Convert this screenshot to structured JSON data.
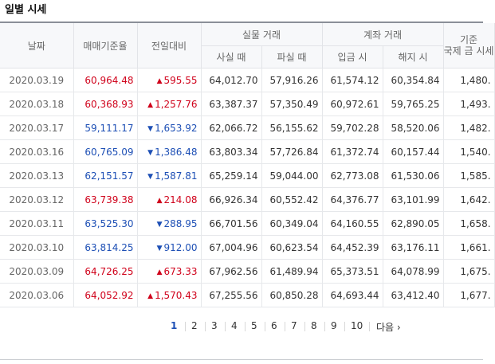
{
  "title": "일별 시세",
  "headers": {
    "date": "날짜",
    "base_rate": "매매기준율",
    "change": "전일대비",
    "actual_trade": "실물 거래",
    "buy": "사실 때",
    "sell": "파실 때",
    "account_trade": "계좌 거래",
    "deposit": "입금 시",
    "withdraw": "해지 시",
    "reference_line1": "기준",
    "reference_line2": "국제 금 시세"
  },
  "rows": [
    {
      "date": "2020.03.19",
      "base": "60,964.48",
      "dir": "up",
      "change": "595.55",
      "buy": "64,012.70",
      "sell": "57,916.26",
      "deposit": "61,574.12",
      "withdraw": "60,354.84",
      "ref": "1,480."
    },
    {
      "date": "2020.03.18",
      "base": "60,368.93",
      "dir": "up",
      "change": "1,257.76",
      "buy": "63,387.37",
      "sell": "57,350.49",
      "deposit": "60,972.61",
      "withdraw": "59,765.25",
      "ref": "1,493."
    },
    {
      "date": "2020.03.17",
      "base": "59,111.17",
      "dir": "down",
      "change": "1,653.92",
      "buy": "62,066.72",
      "sell": "56,155.62",
      "deposit": "59,702.28",
      "withdraw": "58,520.06",
      "ref": "1,482."
    },
    {
      "date": "2020.03.16",
      "base": "60,765.09",
      "dir": "down",
      "change": "1,386.48",
      "buy": "63,803.34",
      "sell": "57,726.84",
      "deposit": "61,372.74",
      "withdraw": "60,157.44",
      "ref": "1,540."
    },
    {
      "date": "2020.03.13",
      "base": "62,151.57",
      "dir": "down",
      "change": "1,587.81",
      "buy": "65,259.14",
      "sell": "59,044.00",
      "deposit": "62,773.08",
      "withdraw": "61,530.06",
      "ref": "1,585."
    },
    {
      "date": "2020.03.12",
      "base": "63,739.38",
      "dir": "up",
      "change": "214.08",
      "buy": "66,926.34",
      "sell": "60,552.42",
      "deposit": "64,376.77",
      "withdraw": "63,101.99",
      "ref": "1,642."
    },
    {
      "date": "2020.03.11",
      "base": "63,525.30",
      "dir": "down",
      "change": "288.95",
      "buy": "66,701.56",
      "sell": "60,349.04",
      "deposit": "64,160.55",
      "withdraw": "62,890.05",
      "ref": "1,658."
    },
    {
      "date": "2020.03.10",
      "base": "63,814.25",
      "dir": "down",
      "change": "912.00",
      "buy": "67,004.96",
      "sell": "60,623.54",
      "deposit": "64,452.39",
      "withdraw": "63,176.11",
      "ref": "1,661."
    },
    {
      "date": "2020.03.09",
      "base": "64,726.25",
      "dir": "up",
      "change": "673.33",
      "buy": "67,962.56",
      "sell": "61,489.94",
      "deposit": "65,373.51",
      "withdraw": "64,078.99",
      "ref": "1,675."
    },
    {
      "date": "2020.03.06",
      "base": "64,052.92",
      "dir": "up",
      "change": "1,570.43",
      "buy": "67,255.56",
      "sell": "60,850.28",
      "deposit": "64,693.44",
      "withdraw": "63,412.40",
      "ref": "1,677."
    }
  ],
  "pagination": {
    "pages": [
      "1",
      "2",
      "3",
      "4",
      "5",
      "6",
      "7",
      "8",
      "9",
      "10"
    ],
    "current": "1",
    "next_label": "다음 ›"
  },
  "colors": {
    "up": "#d0021b",
    "down": "#1d4fb5",
    "header_bg": "#f7f8fa"
  },
  "icons": {
    "up": "triangle-up-icon",
    "down": "triangle-down-icon"
  }
}
